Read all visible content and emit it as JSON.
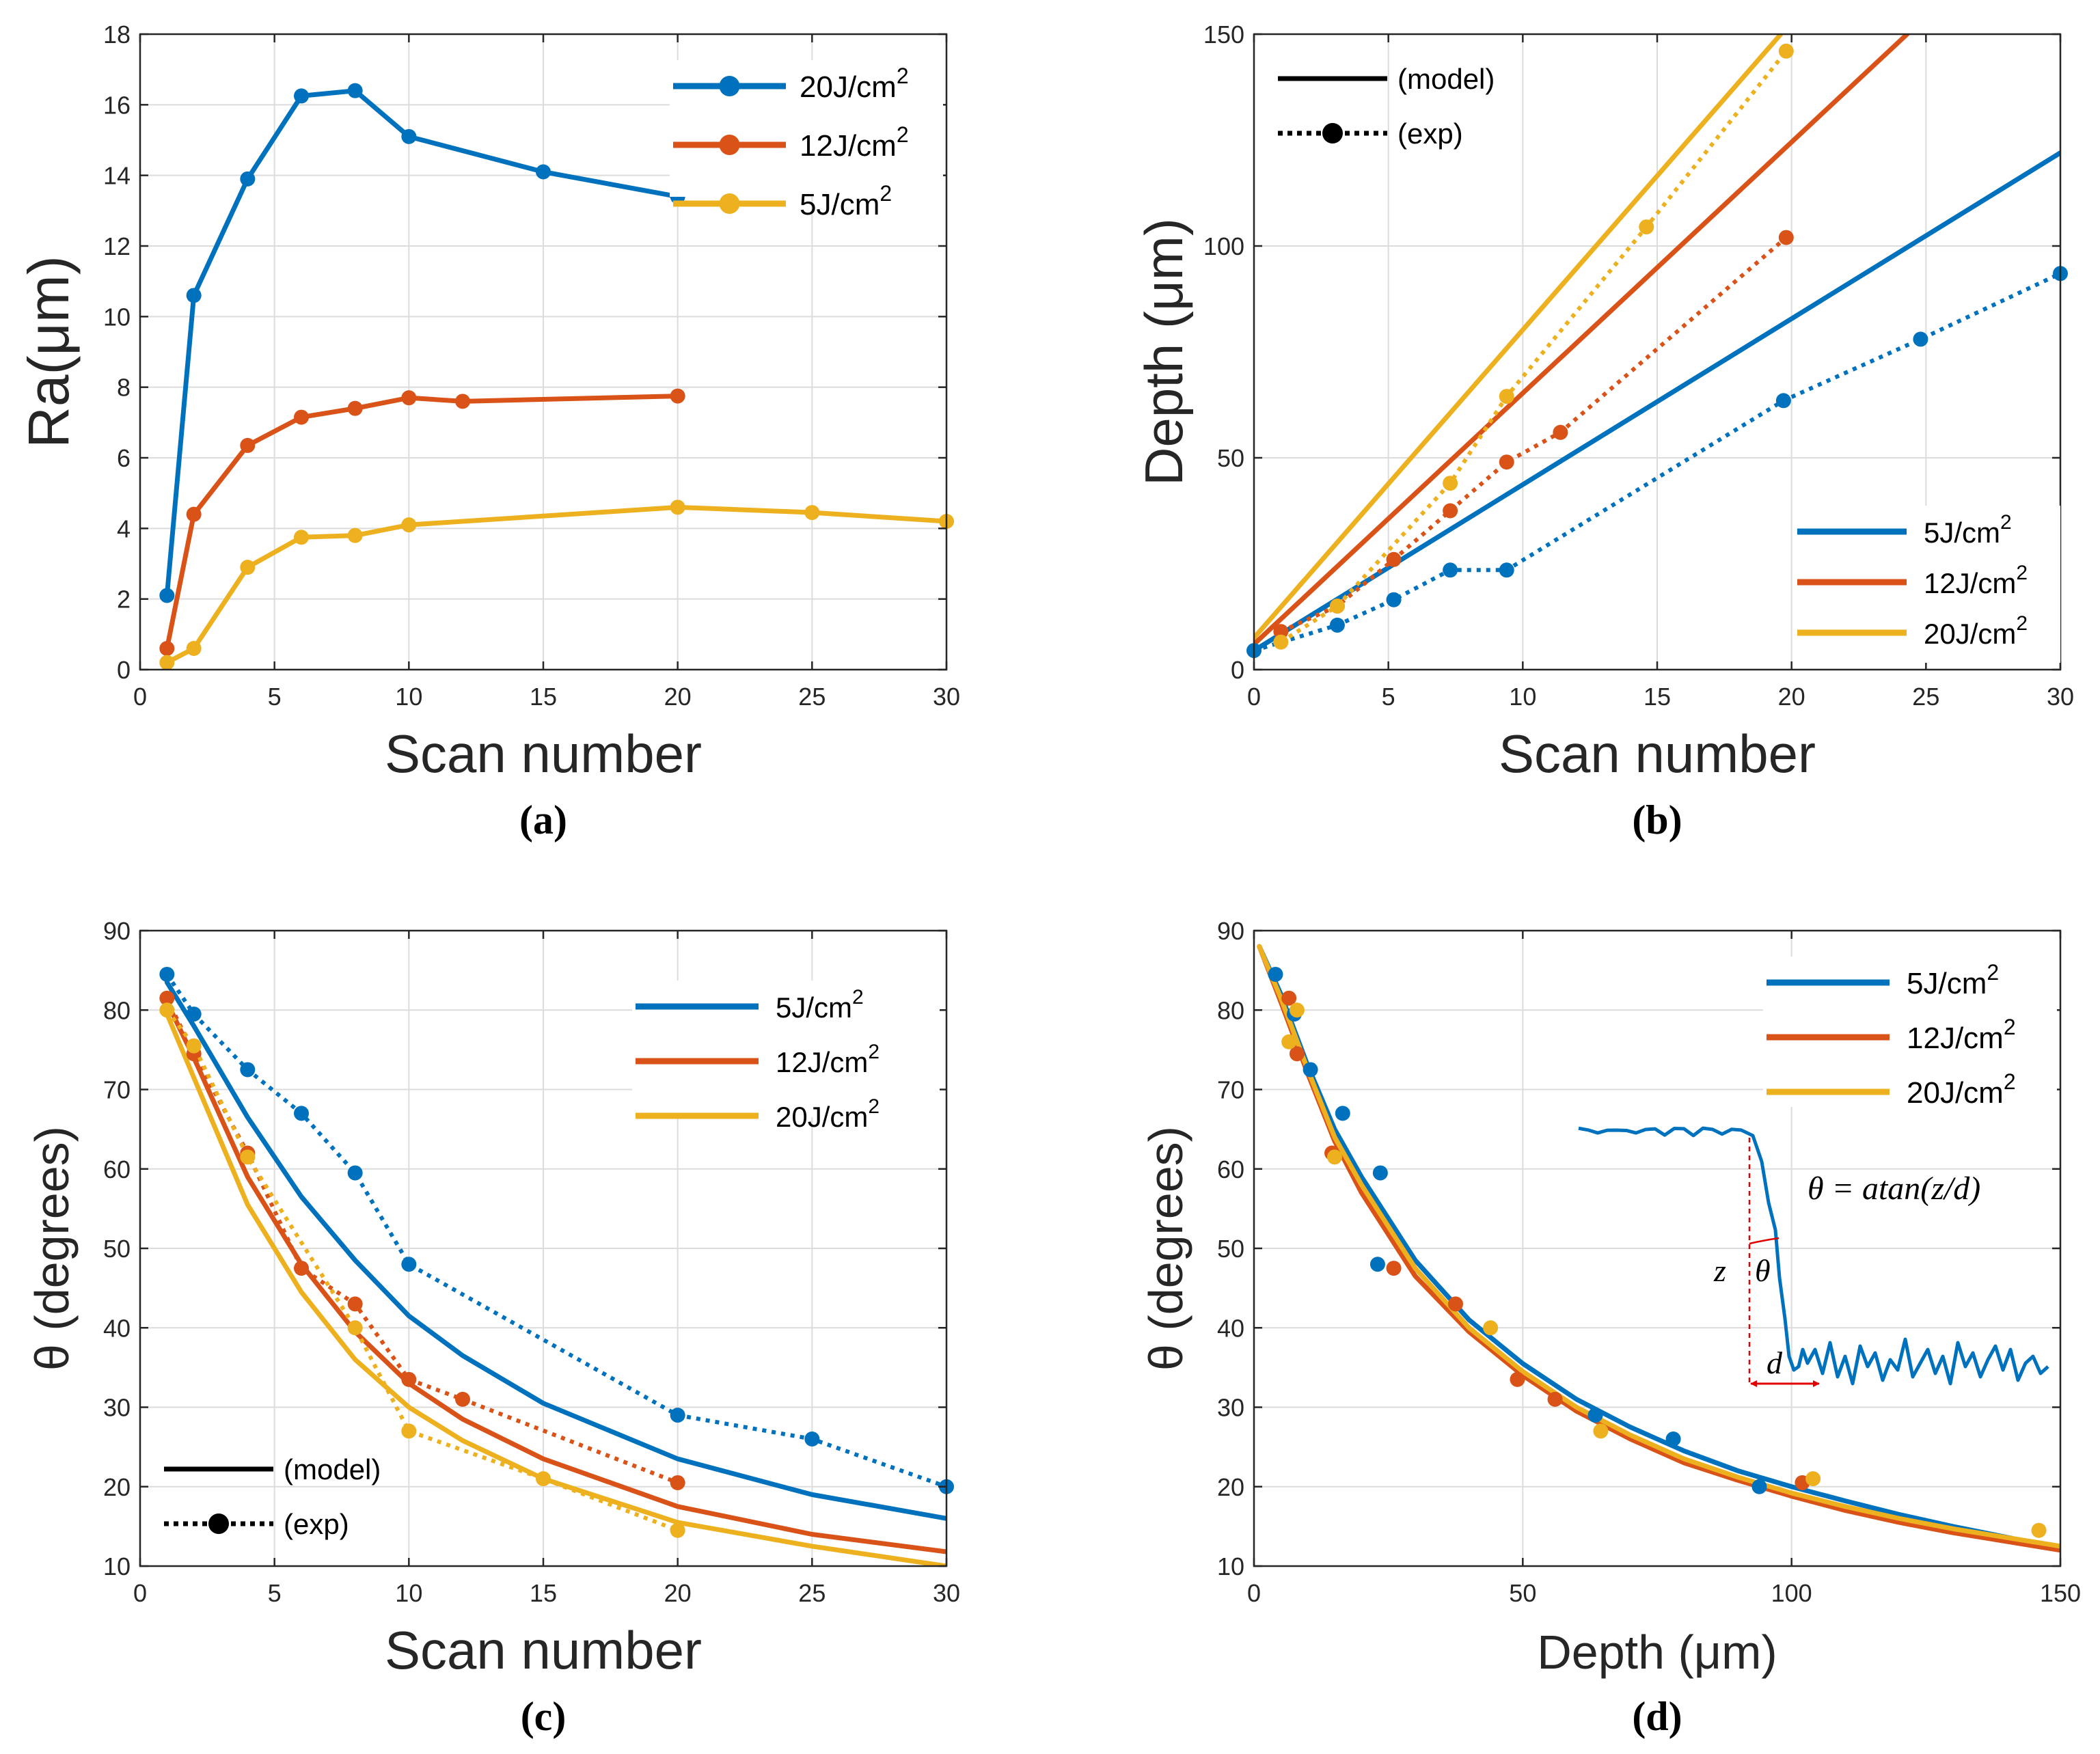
{
  "colors": {
    "c5": "#0072BD",
    "c12": "#D95319",
    "c20": "#EDB120"
  },
  "charts": [
    {
      "panel": "(a)",
      "type": "line",
      "xlabel": "Scan number",
      "ylabel": "Ra(μm)",
      "xlim": [
        0,
        30
      ],
      "ylim": [
        0,
        18
      ],
      "xticks": [
        0,
        5,
        10,
        15,
        20,
        25,
        30
      ],
      "yticks": [
        0,
        2,
        4,
        6,
        8,
        10,
        12,
        14,
        16,
        18
      ],
      "grid": true,
      "legend_position": "top-right",
      "legend": [
        {
          "label": "20J/cm",
          "sup": "2",
          "color": "c5",
          "style": "line-marker"
        },
        {
          "label": "12J/cm",
          "sup": "2",
          "color": "c12",
          "style": "line-marker"
        },
        {
          "label": "5J/cm",
          "sup": "2",
          "color": "c20",
          "style": "line-marker"
        }
      ],
      "series": [
        {
          "name": "20J/cm2",
          "color": "c5",
          "dash": false,
          "markers": true,
          "x": [
            1,
            2,
            4,
            6,
            8,
            10,
            15,
            20
          ],
          "y": [
            2.1,
            10.6,
            13.9,
            16.25,
            16.4,
            15.1,
            14.1,
            13.4
          ]
        },
        {
          "name": "12J/cm2",
          "color": "c12",
          "dash": false,
          "markers": true,
          "x": [
            1,
            2,
            4,
            6,
            8,
            10,
            12,
            20
          ],
          "y": [
            0.6,
            4.4,
            6.35,
            7.15,
            7.4,
            7.7,
            7.6,
            7.75
          ]
        },
        {
          "name": "5J/cm2",
          "color": "c20",
          "dash": false,
          "markers": true,
          "x": [
            1,
            2,
            4,
            6,
            8,
            10,
            20,
            25,
            30
          ],
          "y": [
            0.2,
            0.6,
            2.9,
            3.75,
            3.8,
            4.1,
            4.6,
            4.45,
            4.2
          ]
        }
      ]
    },
    {
      "panel": "(b)",
      "type": "line",
      "xlabel": "Scan number",
      "ylabel": "Depth (μm)",
      "xlim": [
        0,
        30
      ],
      "ylim": [
        0,
        150
      ],
      "xticks": [
        0,
        5,
        10,
        15,
        20,
        25,
        30
      ],
      "yticks": [
        0,
        50,
        100,
        150
      ],
      "grid": true,
      "legend_position": "bottom-right",
      "legend": [
        {
          "label": "5J/cm",
          "sup": "2",
          "color": "c5",
          "style": "line"
        },
        {
          "label": "12J/cm",
          "sup": "2",
          "color": "c12",
          "style": "line"
        },
        {
          "label": "20J/cm",
          "sup": "2",
          "color": "c20",
          "style": "line"
        }
      ],
      "style_legend": [
        {
          "label": "(model)",
          "style": "line"
        },
        {
          "label": "(exp)",
          "style": "dot-marker"
        }
      ],
      "series": [
        {
          "name": "5J/cm2 model",
          "color": "c5",
          "dash": false,
          "markers": false,
          "x": [
            0,
            30
          ],
          "y": [
            4.5,
            122
          ]
        },
        {
          "name": "12J/cm2 model",
          "color": "c12",
          "dash": false,
          "markers": false,
          "x": [
            0,
            24.3
          ],
          "y": [
            6,
            150
          ]
        },
        {
          "name": "20J/cm2 model",
          "color": "c20",
          "dash": false,
          "markers": false,
          "x": [
            0,
            19.6
          ],
          "y": [
            7.5,
            150
          ]
        },
        {
          "name": "5J/cm2 exp",
          "color": "c5",
          "dash": true,
          "markers": true,
          "x": [
            0,
            3.1,
            5.2,
            7.3,
            9.4,
            19.7,
            24.8,
            30
          ],
          "y": [
            4.5,
            10.5,
            16.5,
            23.5,
            23.5,
            63.5,
            78,
            93.5
          ]
        },
        {
          "name": "12J/cm2 exp",
          "color": "c12",
          "dash": true,
          "markers": true,
          "x": [
            1.0,
            3.1,
            5.2,
            7.3,
            9.4,
            11.4,
            19.8
          ],
          "y": [
            9,
            15,
            26,
            37.5,
            49,
            56,
            102
          ]
        },
        {
          "name": "20J/cm2 exp",
          "color": "c20",
          "dash": true,
          "markers": true,
          "x": [
            1.0,
            3.1,
            7.3,
            9.4,
            14.6,
            19.8
          ],
          "y": [
            6.5,
            15,
            44,
            64.5,
            104.5,
            146
          ]
        }
      ]
    },
    {
      "panel": "(c)",
      "type": "line",
      "xlabel": "Scan number",
      "ylabel": "θ (degrees)",
      "xlim": [
        0,
        30
      ],
      "ylim": [
        10,
        90
      ],
      "xticks": [
        0,
        5,
        10,
        15,
        20,
        25,
        30
      ],
      "yticks": [
        10,
        20,
        30,
        40,
        50,
        60,
        70,
        80,
        90
      ],
      "grid": true,
      "legend_position": "top-right",
      "legend": [
        {
          "label": "5J/cm",
          "sup": "2",
          "color": "c5",
          "style": "line"
        },
        {
          "label": "12J/cm",
          "sup": "2",
          "color": "c12",
          "style": "line"
        },
        {
          "label": "20J/cm",
          "sup": "2",
          "color": "c20",
          "style": "line"
        }
      ],
      "style_legend": [
        {
          "label": "(model)",
          "style": "line"
        },
        {
          "label": "(exp)",
          "style": "dot-marker"
        }
      ],
      "series": [
        {
          "name": "5J/cm2 model",
          "color": "c5",
          "dash": false,
          "markers": false,
          "x": [
            1,
            2,
            4,
            6,
            8,
            10,
            12,
            15,
            20,
            25,
            30
          ],
          "y": [
            83.5,
            78,
            66.5,
            56.5,
            48.5,
            41.5,
            36.5,
            30.5,
            23.5,
            19,
            16
          ]
        },
        {
          "name": "12J/cm2 model",
          "color": "c12",
          "dash": false,
          "markers": false,
          "x": [
            1,
            2,
            4,
            6,
            8,
            10,
            12,
            15,
            20,
            25,
            30
          ],
          "y": [
            81,
            74,
            59,
            48,
            39.5,
            33,
            28.5,
            23.5,
            17.5,
            14,
            11.8
          ]
        },
        {
          "name": "20J/cm2 model",
          "color": "c20",
          "dash": false,
          "markers": false,
          "x": [
            1,
            2,
            4,
            6,
            8,
            10,
            12,
            15,
            20,
            25,
            30
          ],
          "y": [
            79.5,
            71.5,
            55.5,
            44.5,
            36,
            30,
            25.8,
            21,
            15.5,
            12.5,
            10
          ]
        },
        {
          "name": "5J/cm2 exp",
          "color": "c5",
          "dash": true,
          "markers": true,
          "x": [
            1,
            2,
            4,
            6,
            8,
            10,
            20,
            25,
            30
          ],
          "y": [
            84.5,
            79.5,
            72.5,
            67,
            59.5,
            48,
            29,
            26,
            20
          ]
        },
        {
          "name": "12J/cm2 exp",
          "color": "c12",
          "dash": true,
          "markers": true,
          "x": [
            1,
            2,
            4,
            6,
            8,
            10,
            12,
            20
          ],
          "y": [
            81.5,
            74.5,
            62,
            47.5,
            43,
            33.5,
            31,
            20.5
          ]
        },
        {
          "name": "20J/cm2 exp",
          "color": "c20",
          "dash": true,
          "markers": true,
          "x": [
            1,
            2,
            4,
            8,
            10,
            15,
            20
          ],
          "y": [
            80,
            75.5,
            61.5,
            40,
            27,
            21,
            14.5
          ]
        }
      ]
    },
    {
      "panel": "(d)",
      "type": "line",
      "xlabel": "Depth (μm)",
      "ylabel": "θ (degrees)",
      "xlim": [
        0,
        150
      ],
      "ylim": [
        10,
        90
      ],
      "xticks": [
        0,
        50,
        100,
        150
      ],
      "yticks": [
        10,
        20,
        30,
        40,
        50,
        60,
        70,
        80,
        90
      ],
      "grid": true,
      "legend_position": "top-right",
      "legend": [
        {
          "label": "5J/cm",
          "sup": "2",
          "color": "c5",
          "style": "line"
        },
        {
          "label": "12J/cm",
          "sup": "2",
          "color": "c12",
          "style": "line"
        },
        {
          "label": "20J/cm",
          "sup": "2",
          "color": "c20",
          "style": "line"
        }
      ],
      "inset": {
        "formula": "θ = atan(z/d)",
        "z_label": "z",
        "theta_label": "θ",
        "d_label": "d"
      },
      "series": [
        {
          "name": "5J/cm2 model",
          "color": "c5",
          "dash": false,
          "markers": false,
          "x": [
            1,
            5,
            10,
            15,
            20,
            30,
            40,
            50,
            60,
            70,
            80,
            90,
            100,
            110,
            120,
            130,
            141
          ],
          "y": [
            88,
            82,
            73,
            65,
            59,
            48.5,
            41,
            35.5,
            31,
            27.5,
            24.5,
            22,
            20,
            18.2,
            16.5,
            15,
            13.5
          ]
        },
        {
          "name": "12J/cm2 model",
          "color": "c12",
          "dash": false,
          "markers": false,
          "x": [
            1,
            5,
            10,
            15,
            20,
            30,
            40,
            50,
            60,
            70,
            80,
            90,
            100,
            110,
            120,
            130,
            150
          ],
          "y": [
            88,
            81,
            72,
            63.5,
            57,
            46.5,
            39.5,
            34,
            29.5,
            26,
            23,
            20.8,
            18.8,
            17,
            15.5,
            14.2,
            12
          ]
        },
        {
          "name": "20J/cm2 model",
          "color": "c20",
          "dash": false,
          "markers": false,
          "x": [
            1,
            5,
            10,
            15,
            20,
            30,
            40,
            50,
            60,
            70,
            80,
            90,
            100,
            110,
            120,
            130,
            150
          ],
          "y": [
            88,
            81.5,
            72.5,
            64,
            58,
            47.5,
            40,
            34.5,
            30,
            26.5,
            23.5,
            21.2,
            19.2,
            17.5,
            16,
            14.7,
            12.5
          ]
        },
        {
          "name": "5J/cm2 exp",
          "color": "c5",
          "dash": false,
          "markers": true,
          "line": false,
          "x": [
            4,
            7.5,
            10.5,
            16.5,
            23.5,
            23,
            63.5,
            78,
            94
          ],
          "y": [
            84.5,
            79.5,
            72.5,
            67,
            59.5,
            48,
            29,
            26,
            20
          ]
        },
        {
          "name": "12J/cm2 exp",
          "color": "c12",
          "dash": false,
          "markers": true,
          "line": false,
          "x": [
            6.5,
            8,
            14.5,
            26,
            37.5,
            49,
            56,
            102
          ],
          "y": [
            81.5,
            74.5,
            62,
            47.5,
            43,
            33.5,
            31,
            20.5
          ]
        },
        {
          "name": "20J/cm2 exp",
          "color": "c20",
          "dash": false,
          "markers": true,
          "line": false,
          "x": [
            6.5,
            8,
            15,
            44,
            64.5,
            104,
            146
          ],
          "y": [
            76,
            80,
            61.5,
            40,
            27,
            21,
            14.5
          ]
        }
      ]
    }
  ]
}
